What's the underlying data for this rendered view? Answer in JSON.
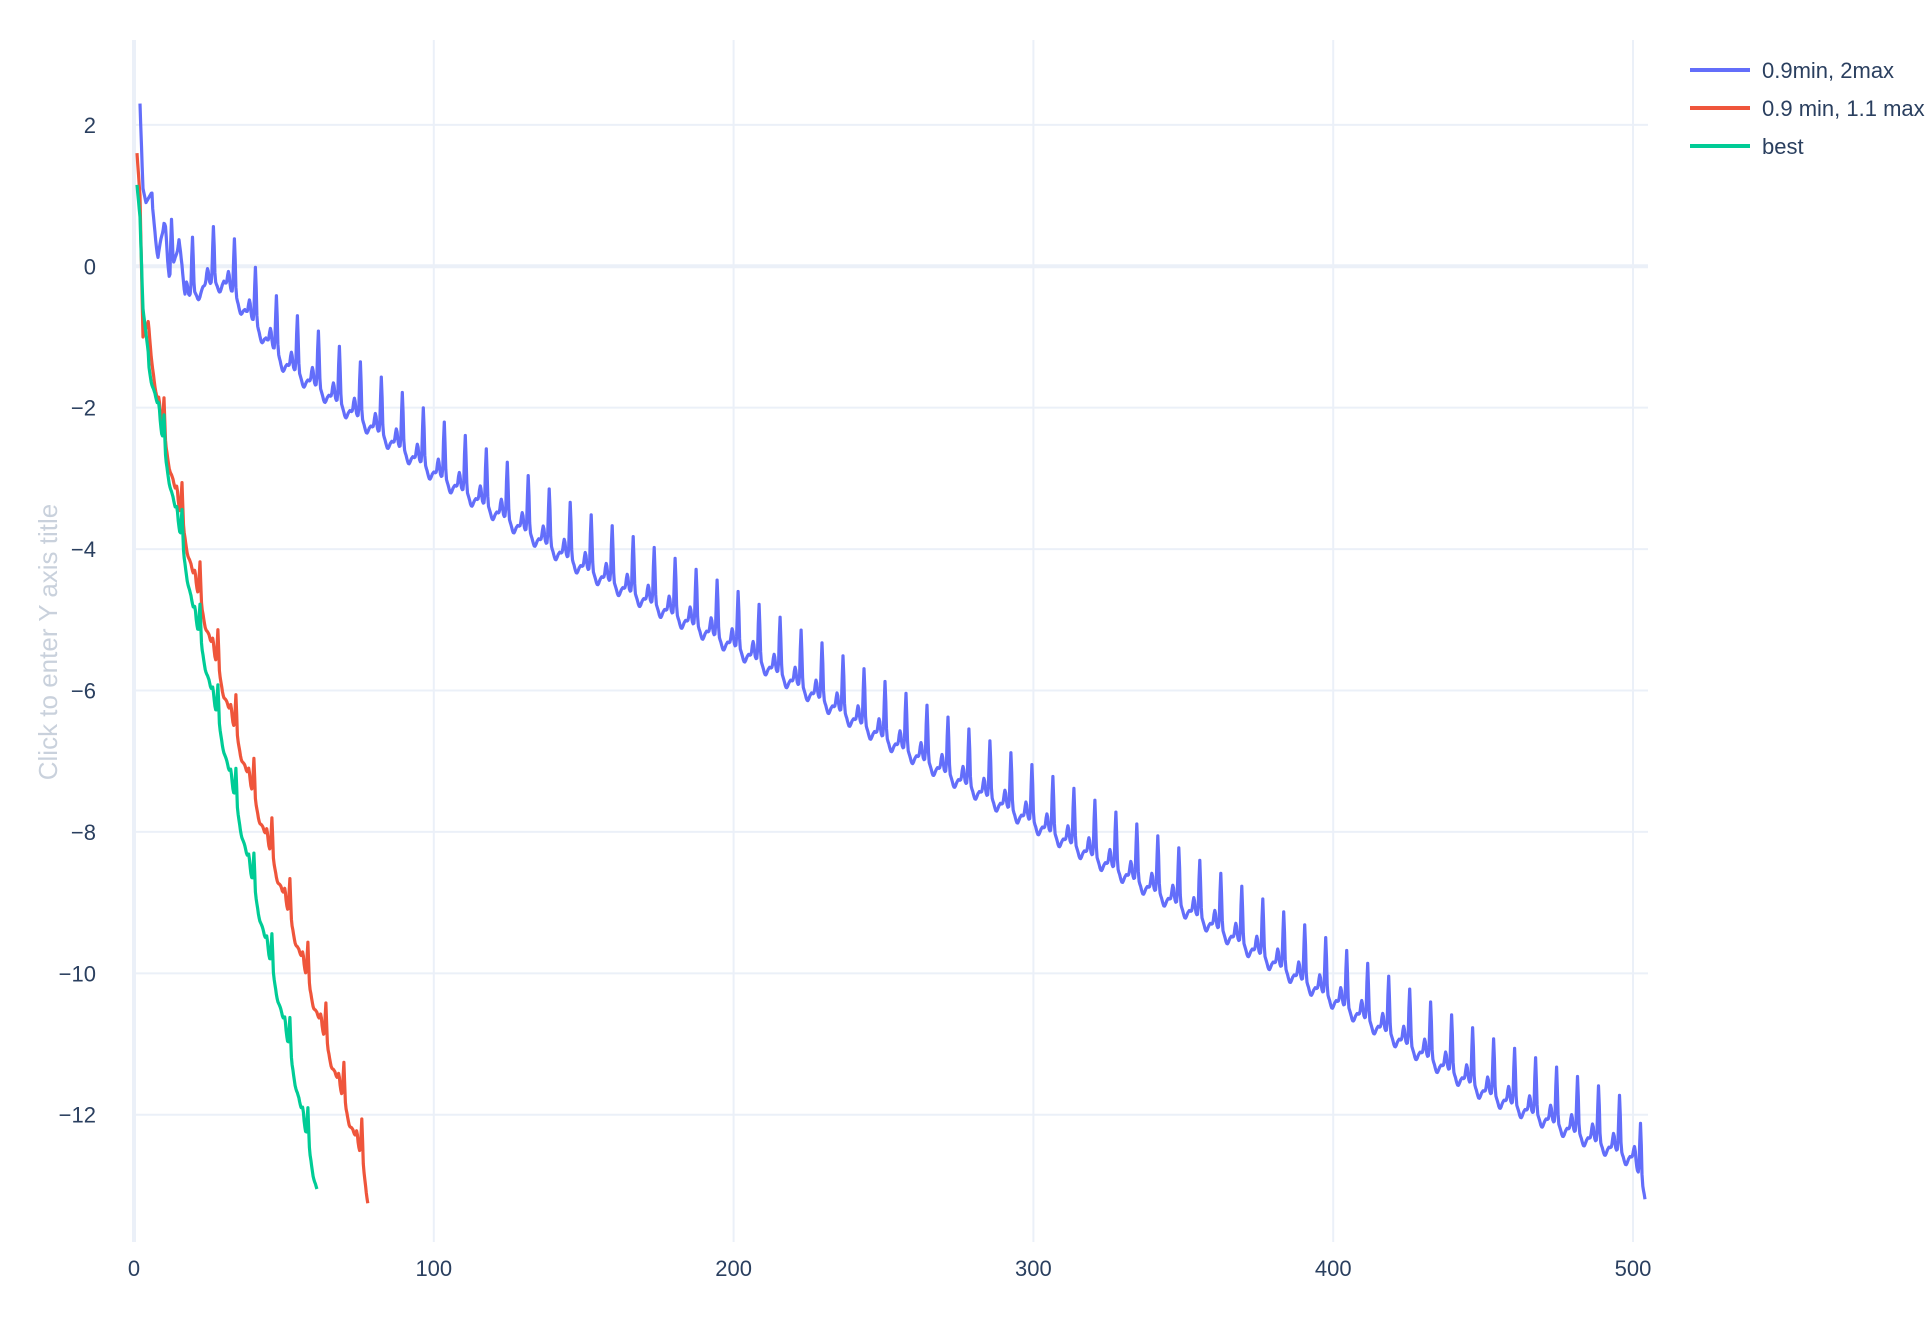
{
  "chart_data": {
    "type": "line",
    "title": "",
    "xlabel": "",
    "ylabel": "Click to enter Y axis title",
    "xlim": [
      0,
      505
    ],
    "ylim": [
      -13.8,
      3.2
    ],
    "x_ticks": [
      0,
      100,
      200,
      300,
      400,
      500
    ],
    "x_tick_labels": [
      "0",
      "100",
      "200",
      "300",
      "400",
      "500"
    ],
    "y_ticks": [
      2,
      0,
      -2,
      -4,
      -6,
      -8,
      -10,
      -12
    ],
    "y_tick_labels": [
      "2",
      "0",
      "−2",
      "−4",
      "−6",
      "−8",
      "−10",
      "−12"
    ],
    "grid": true,
    "legend_position": "top-right",
    "series": [
      {
        "name": "0.9min, 2max",
        "color": "#636efa",
        "x_start": 2,
        "x_end": 504,
        "y_start": 2.3,
        "y_end": -12.95,
        "oscillation_period": 7,
        "spike_height": 0.8,
        "points": [
          [
            2,
            2.3
          ],
          [
            3,
            1.1
          ],
          [
            4,
            0.9
          ],
          [
            6,
            1.05
          ],
          [
            8,
            0.4
          ],
          [
            10,
            0.7
          ],
          [
            12,
            -0.1
          ],
          [
            15,
            0.65
          ],
          [
            17,
            -0.3
          ],
          [
            24,
            -0.1
          ],
          [
            30,
            -0.05
          ],
          [
            50,
            -1.2
          ],
          [
            100,
            -2.75
          ],
          [
            150,
            -4.1
          ],
          [
            200,
            -5.2
          ],
          [
            250,
            -6.5
          ],
          [
            300,
            -7.7
          ],
          [
            350,
            -8.9
          ],
          [
            400,
            -10.2
          ],
          [
            450,
            -11.5
          ],
          [
            500,
            -12.45
          ],
          [
            504,
            -12.95
          ]
        ]
      },
      {
        "name": "0.9 min, 1.1 max",
        "color": "#ef553b",
        "x_start": 1,
        "x_end": 78,
        "y_start": 1.6,
        "y_end": -13.05,
        "oscillation_period": 6,
        "spike_height": 0.55,
        "points": [
          [
            1,
            1.6
          ],
          [
            2,
            1.0
          ],
          [
            3,
            -1.0
          ],
          [
            5,
            -0.75
          ],
          [
            7,
            -1.6
          ],
          [
            10,
            -2.3
          ],
          [
            15,
            -3.3
          ],
          [
            20,
            -4.3
          ],
          [
            30,
            -5.9
          ],
          [
            40,
            -7.4
          ],
          [
            50,
            -8.8
          ],
          [
            60,
            -10.3
          ],
          [
            70,
            -11.7
          ],
          [
            76,
            -12.5
          ],
          [
            78,
            -13.05
          ]
        ]
      },
      {
        "name": "best",
        "color": "#00cc96",
        "x_start": 1,
        "x_end": 61,
        "y_start": 1.15,
        "y_end": -12.95,
        "oscillation_period": 6,
        "spike_height": 0.5,
        "points": [
          [
            1,
            1.15
          ],
          [
            2,
            0.7
          ],
          [
            3,
            -0.6
          ],
          [
            5,
            -1.3
          ],
          [
            8,
            -1.9
          ],
          [
            10,
            -2.5
          ],
          [
            15,
            -3.6
          ],
          [
            20,
            -4.8
          ],
          [
            30,
            -6.7
          ],
          [
            40,
            -8.7
          ],
          [
            50,
            -10.6
          ],
          [
            58,
            -12.3
          ],
          [
            61,
            -12.95
          ]
        ]
      }
    ]
  }
}
